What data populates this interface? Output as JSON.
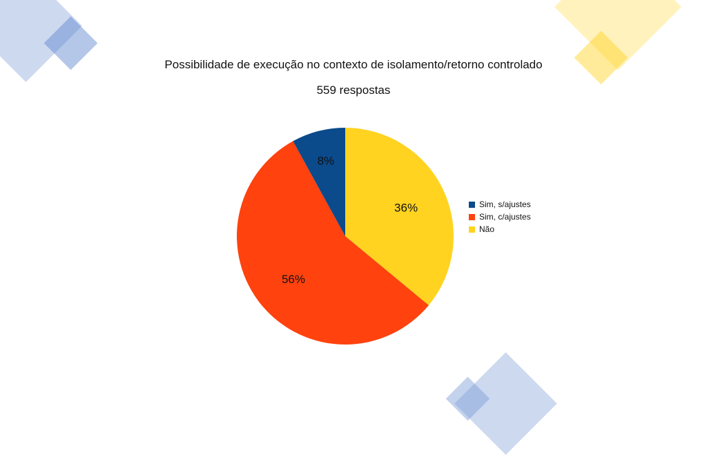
{
  "chart_data": {
    "type": "pie",
    "title": "Possibilidade de execução no contexto de isolamento/retorno controlado",
    "subtitle": "559 respostas",
    "slices": [
      {
        "name": "Sim, s/ajustes",
        "value": 8,
        "label": "8%",
        "color": "#0B4A8B"
      },
      {
        "name": "Sim, c/ajustes",
        "value": 56,
        "label": "56%",
        "color": "#FF420E"
      },
      {
        "name": "Não",
        "value": 36,
        "label": "36%",
        "color": "#FFD320"
      }
    ],
    "legend_position": "right"
  }
}
